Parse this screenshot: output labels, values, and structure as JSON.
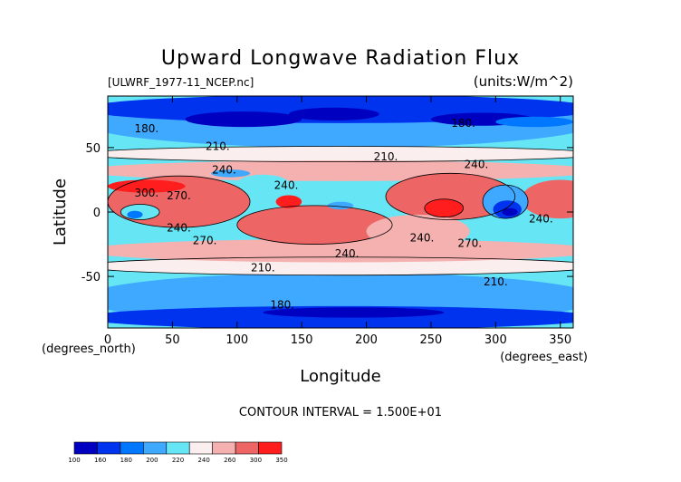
{
  "chart_data": {
    "type": "heatmap",
    "title": "Upward Longwave Radiation Flux",
    "file_label": "[ULWRF_1977-11_NCEP.nc]",
    "units_label": "(units:W/m^2)",
    "xlabel": "Longitude",
    "ylabel": "Latitude",
    "x_unit_label": "(degrees_east)",
    "y_unit_label": "(degrees_north)",
    "xlim": [
      0,
      360
    ],
    "ylim": [
      -90,
      90
    ],
    "x_ticks": [
      0,
      50,
      100,
      150,
      200,
      250,
      300,
      350
    ],
    "y_ticks": [
      -50,
      0,
      50
    ],
    "contour_interval_label": "CONTOUR INTERVAL = 1.500E+01",
    "contour_labels": [
      {
        "text": "180.",
        "lon": 30,
        "lat": 62
      },
      {
        "text": "180.",
        "lon": 275,
        "lat": 66
      },
      {
        "text": "180.",
        "lon": 135,
        "lat": -75
      },
      {
        "text": "210.",
        "lon": 85,
        "lat": 48
      },
      {
        "text": "210.",
        "lon": 215,
        "lat": 40
      },
      {
        "text": "210.",
        "lon": 120,
        "lat": -46
      },
      {
        "text": "210.",
        "lon": 300,
        "lat": -57
      },
      {
        "text": "240.",
        "lon": 90,
        "lat": 30
      },
      {
        "text": "240.",
        "lon": 138,
        "lat": 18
      },
      {
        "text": "240.",
        "lon": 285,
        "lat": 34
      },
      {
        "text": "240.",
        "lon": 55,
        "lat": -15
      },
      {
        "text": "240.",
        "lon": 185,
        "lat": -35
      },
      {
        "text": "240.",
        "lon": 243,
        "lat": -23
      },
      {
        "text": "240.",
        "lon": 335,
        "lat": -8
      },
      {
        "text": "270.",
        "lon": 55,
        "lat": 10
      },
      {
        "text": "270.",
        "lon": 75,
        "lat": -25
      },
      {
        "text": "270.",
        "lon": 280,
        "lat": -27
      },
      {
        "text": "300.",
        "lon": 30,
        "lat": 12
      }
    ],
    "colorbar": {
      "ticks": [
        "100",
        "160",
        "180",
        "200",
        "220",
        "240",
        "260",
        "300",
        "350"
      ],
      "colors": [
        "#0000c0",
        "#0033ee",
        "#0077ff",
        "#3fa9ff",
        "#66e6f5",
        "#fbeeee",
        "#f5b0b0",
        "#ee6565",
        "#ff1d1d"
      ]
    }
  }
}
